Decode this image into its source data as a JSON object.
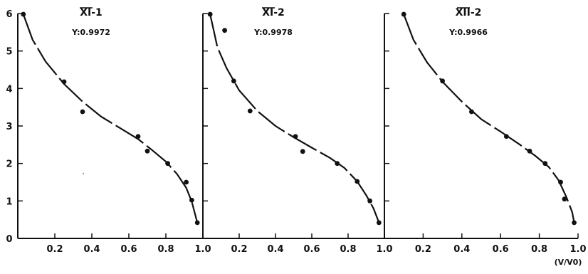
{
  "chart_data": [
    {
      "type": "scatter",
      "title": "XI-1",
      "annotation": "Y:0.9972",
      "xlim": [
        0,
        1.0
      ],
      "ylim": [
        0,
        6
      ],
      "xticks": [
        "0.2",
        "0.4",
        "0.6",
        "0.8",
        "1.0"
      ],
      "yticks": [
        "0",
        "1",
        "2",
        "3",
        "4",
        "5",
        "6"
      ],
      "points": [
        [
          0.03,
          5.98
        ],
        [
          0.25,
          4.18
        ],
        [
          0.35,
          3.38
        ],
        [
          0.65,
          2.72
        ],
        [
          0.7,
          2.33
        ],
        [
          0.81,
          2.0
        ],
        [
          0.91,
          1.5
        ],
        [
          0.94,
          1.02
        ],
        [
          0.97,
          0.42
        ]
      ],
      "curve": [
        [
          0.03,
          5.98
        ],
        [
          0.08,
          5.3
        ],
        [
          0.15,
          4.72
        ],
        [
          0.25,
          4.12
        ],
        [
          0.35,
          3.65
        ],
        [
          0.45,
          3.25
        ],
        [
          0.55,
          2.95
        ],
        [
          0.65,
          2.65
        ],
        [
          0.72,
          2.38
        ],
        [
          0.8,
          2.05
        ],
        [
          0.86,
          1.72
        ],
        [
          0.91,
          1.35
        ],
        [
          0.94,
          0.98
        ],
        [
          0.97,
          0.42
        ]
      ]
    },
    {
      "type": "scatter",
      "title": "XI-2",
      "annotation": "Y:0.9978",
      "xlim": [
        0,
        1.0
      ],
      "ylim": [
        0,
        6
      ],
      "xticks": [
        "0.2",
        "0.4",
        "0.6",
        "0.8",
        "1.0"
      ],
      "yticks": [],
      "points": [
        [
          0.04,
          5.98
        ],
        [
          0.12,
          5.55
        ],
        [
          0.17,
          4.2
        ],
        [
          0.26,
          3.4
        ],
        [
          0.51,
          2.72
        ],
        [
          0.55,
          2.32
        ],
        [
          0.74,
          2.0
        ],
        [
          0.85,
          1.52
        ],
        [
          0.92,
          1.0
        ],
        [
          0.97,
          0.42
        ]
      ],
      "curve": [
        [
          0.04,
          5.98
        ],
        [
          0.08,
          5.1
        ],
        [
          0.13,
          4.55
        ],
        [
          0.2,
          3.95
        ],
        [
          0.3,
          3.4
        ],
        [
          0.4,
          3.0
        ],
        [
          0.5,
          2.7
        ],
        [
          0.6,
          2.42
        ],
        [
          0.7,
          2.15
        ],
        [
          0.78,
          1.88
        ],
        [
          0.85,
          1.52
        ],
        [
          0.9,
          1.15
        ],
        [
          0.94,
          0.8
        ],
        [
          0.97,
          0.42
        ]
      ]
    },
    {
      "type": "scatter",
      "title": "XII-2",
      "annotation": "Y:0.9966",
      "xlim": [
        0,
        1.0
      ],
      "ylim": [
        0,
        6
      ],
      "xticks": [
        "0.2",
        "0.4",
        "0.6",
        "0.8",
        "1.0"
      ],
      "yticks": [],
      "xunit": "(V/V0)",
      "points": [
        [
          0.1,
          5.98
        ],
        [
          0.3,
          4.2
        ],
        [
          0.45,
          3.38
        ],
        [
          0.63,
          2.72
        ],
        [
          0.75,
          2.33
        ],
        [
          0.83,
          2.0
        ],
        [
          0.91,
          1.5
        ],
        [
          0.93,
          1.05
        ],
        [
          0.98,
          0.42
        ]
      ],
      "curve": [
        [
          0.1,
          5.98
        ],
        [
          0.15,
          5.3
        ],
        [
          0.22,
          4.7
        ],
        [
          0.3,
          4.18
        ],
        [
          0.4,
          3.65
        ],
        [
          0.5,
          3.18
        ],
        [
          0.6,
          2.85
        ],
        [
          0.7,
          2.5
        ],
        [
          0.78,
          2.2
        ],
        [
          0.85,
          1.9
        ],
        [
          0.9,
          1.55
        ],
        [
          0.94,
          1.1
        ],
        [
          0.97,
          0.7
        ],
        [
          0.98,
          0.42
        ]
      ]
    }
  ]
}
